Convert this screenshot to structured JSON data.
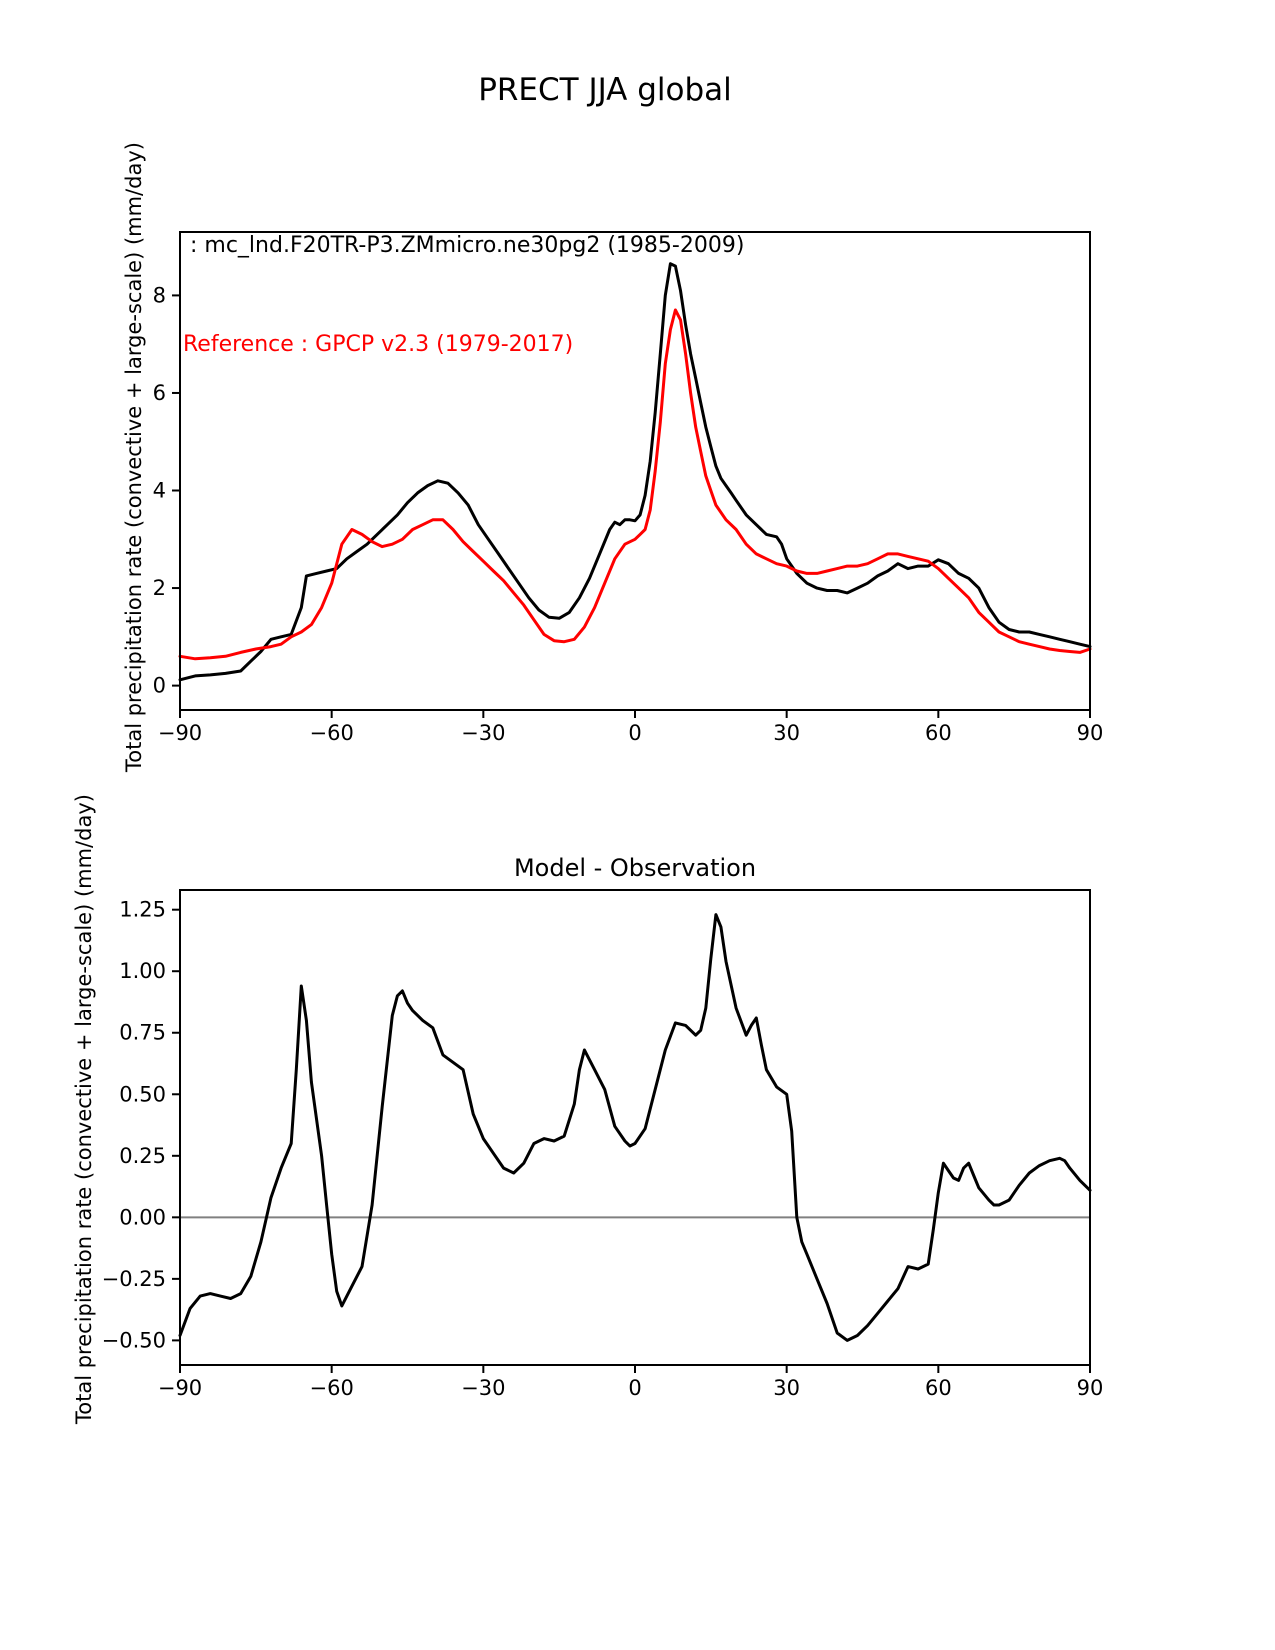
{
  "page": {
    "title": "PRECT JJA global"
  },
  "legend": {
    "model_label": " : mc_lnd.F20TR-P3.ZMmicro.ne30pg2 (1985-2009)",
    "reference_label": "Reference : GPCP v2.3 (1979-2017)",
    "model_color": "#000000",
    "reference_color": "#ff0000"
  },
  "chart_data": [
    {
      "type": "line",
      "title": "",
      "xlabel": "",
      "ylabel": "Total precipitation rate (convective + large-scale) (mm/day)",
      "xlim": [
        -90,
        90
      ],
      "ylim": [
        -0.5,
        9.3
      ],
      "xticks": [
        -90,
        -60,
        -30,
        0,
        30,
        60,
        90
      ],
      "xtick_labels": [
        "−90",
        "−60",
        "−30",
        "0",
        "30",
        "60",
        "90"
      ],
      "yticks": [
        0,
        2,
        4,
        6,
        8
      ],
      "ytick_labels": [
        "0",
        "2",
        "4",
        "6",
        "8"
      ],
      "grid": false,
      "zero_line": false,
      "series": [
        {
          "name": "mc_lnd.F20TR-P3.ZMmicro.ne30pg2 (1985-2009)",
          "color": "#000000",
          "x": [
            -90,
            -87,
            -84,
            -81,
            -78,
            -76,
            -74,
            -72,
            -70,
            -68,
            -66,
            -65,
            -63,
            -61,
            -59,
            -57,
            -55,
            -53,
            -51,
            -49,
            -47,
            -45,
            -43,
            -41,
            -39,
            -37,
            -35,
            -33,
            -31,
            -29,
            -27,
            -25,
            -23,
            -21,
            -19,
            -17,
            -15,
            -13,
            -11,
            -9,
            -7,
            -5,
            -4,
            -3,
            -2,
            -1,
            0,
            1,
            2,
            3,
            4,
            5,
            6,
            7,
            8,
            9,
            10,
            11,
            12,
            13,
            14,
            15,
            16,
            17,
            18,
            19,
            20,
            22,
            24,
            26,
            28,
            29,
            30,
            32,
            34,
            36,
            38,
            40,
            42,
            44,
            46,
            48,
            50,
            52,
            54,
            56,
            58,
            60,
            62,
            64,
            66,
            68,
            70,
            72,
            74,
            76,
            78,
            80,
            82,
            84,
            86,
            88,
            90
          ],
          "y": [
            0.12,
            0.2,
            0.22,
            0.25,
            0.3,
            0.5,
            0.7,
            0.95,
            1.0,
            1.05,
            1.6,
            2.25,
            2.3,
            2.35,
            2.4,
            2.6,
            2.75,
            2.9,
            3.1,
            3.3,
            3.5,
            3.75,
            3.95,
            4.1,
            4.2,
            4.15,
            3.95,
            3.7,
            3.3,
            3.0,
            2.7,
            2.4,
            2.1,
            1.8,
            1.55,
            1.4,
            1.38,
            1.5,
            1.8,
            2.2,
            2.7,
            3.2,
            3.35,
            3.3,
            3.4,
            3.4,
            3.38,
            3.5,
            3.9,
            4.6,
            5.6,
            6.8,
            8.0,
            8.65,
            8.6,
            8.1,
            7.4,
            6.8,
            6.3,
            5.8,
            5.3,
            4.9,
            4.5,
            4.25,
            4.1,
            3.95,
            3.8,
            3.5,
            3.3,
            3.1,
            3.05,
            2.9,
            2.6,
            2.3,
            2.1,
            2.0,
            1.95,
            1.95,
            1.9,
            2.0,
            2.1,
            2.25,
            2.35,
            2.5,
            2.4,
            2.45,
            2.45,
            2.58,
            2.5,
            2.3,
            2.2,
            2.0,
            1.6,
            1.3,
            1.15,
            1.1,
            1.1,
            1.05,
            1.0,
            0.95,
            0.9,
            0.85,
            0.8
          ]
        },
        {
          "name": "GPCP v2.3 (1979-2017)",
          "color": "#ff0000",
          "x": [
            -90,
            -87,
            -84,
            -81,
            -78,
            -75,
            -72,
            -70,
            -68,
            -66,
            -64,
            -62,
            -60,
            -58,
            -56,
            -54,
            -52,
            -50,
            -48,
            -46,
            -44,
            -42,
            -40,
            -38,
            -36,
            -34,
            -32,
            -30,
            -28,
            -26,
            -24,
            -22,
            -20,
            -18,
            -16,
            -14,
            -12,
            -10,
            -8,
            -6,
            -4,
            -2,
            0,
            1,
            2,
            3,
            4,
            5,
            6,
            7,
            8,
            9,
            10,
            11,
            12,
            13,
            14,
            15,
            16,
            18,
            20,
            22,
            24,
            26,
            28,
            30,
            32,
            34,
            36,
            38,
            40,
            42,
            44,
            46,
            48,
            50,
            52,
            54,
            56,
            58,
            60,
            62,
            64,
            66,
            68,
            70,
            72,
            74,
            76,
            78,
            80,
            82,
            84,
            86,
            88,
            90
          ],
          "y": [
            0.6,
            0.55,
            0.57,
            0.6,
            0.68,
            0.75,
            0.8,
            0.85,
            1.0,
            1.1,
            1.25,
            1.6,
            2.1,
            2.9,
            3.2,
            3.1,
            2.95,
            2.85,
            2.9,
            3.0,
            3.2,
            3.3,
            3.4,
            3.4,
            3.2,
            2.95,
            2.75,
            2.55,
            2.35,
            2.15,
            1.9,
            1.65,
            1.35,
            1.05,
            0.92,
            0.9,
            0.95,
            1.2,
            1.6,
            2.1,
            2.6,
            2.9,
            3.0,
            3.1,
            3.2,
            3.6,
            4.4,
            5.4,
            6.6,
            7.3,
            7.7,
            7.5,
            6.8,
            6.0,
            5.3,
            4.8,
            4.3,
            4.0,
            3.7,
            3.4,
            3.2,
            2.9,
            2.7,
            2.6,
            2.5,
            2.45,
            2.35,
            2.3,
            2.3,
            2.35,
            2.4,
            2.45,
            2.45,
            2.5,
            2.6,
            2.7,
            2.7,
            2.65,
            2.6,
            2.55,
            2.4,
            2.2,
            2.0,
            1.8,
            1.5,
            1.3,
            1.1,
            1.0,
            0.9,
            0.85,
            0.8,
            0.75,
            0.72,
            0.7,
            0.68,
            0.75
          ]
        }
      ]
    },
    {
      "type": "line",
      "title": "Model - Observation",
      "xlabel": "",
      "ylabel": "Total precipitation rate (convective + large-scale) (mm/day)",
      "xlim": [
        -90,
        90
      ],
      "ylim": [
        -0.6,
        1.33
      ],
      "xticks": [
        -90,
        -60,
        -30,
        0,
        30,
        60,
        90
      ],
      "xtick_labels": [
        "−90",
        "−60",
        "−30",
        "0",
        "30",
        "60",
        "90"
      ],
      "yticks": [
        -0.5,
        -0.25,
        0.0,
        0.25,
        0.5,
        0.75,
        1.0,
        1.25
      ],
      "ytick_labels": [
        "−0.50",
        "−0.25",
        "0.00",
        "0.25",
        "0.50",
        "0.75",
        "1.00",
        "1.25"
      ],
      "grid": false,
      "zero_line": true,
      "zero_line_color": "#808080",
      "series": [
        {
          "name": "Model - Observation",
          "color": "#000000",
          "x": [
            -90,
            -88,
            -86,
            -84,
            -82,
            -80,
            -78,
            -76,
            -74,
            -72,
            -70,
            -68,
            -67,
            -66,
            -65,
            -64,
            -62,
            -61,
            -60,
            -59,
            -58,
            -56,
            -54,
            -52,
            -50,
            -48,
            -47,
            -46,
            -45,
            -44,
            -42,
            -40,
            -38,
            -36,
            -34,
            -32,
            -30,
            -28,
            -26,
            -24,
            -22,
            -20,
            -18,
            -16,
            -14,
            -12,
            -11,
            -10,
            -9,
            -8,
            -6,
            -4,
            -2,
            -1,
            0,
            2,
            4,
            6,
            8,
            10,
            12,
            13,
            14,
            15,
            16,
            17,
            18,
            20,
            22,
            23,
            24,
            25,
            26,
            28,
            30,
            31,
            32,
            33,
            34,
            36,
            38,
            40,
            42,
            44,
            46,
            48,
            50,
            52,
            54,
            56,
            58,
            59,
            60,
            61,
            62,
            63,
            64,
            65,
            66,
            67,
            68,
            70,
            71,
            72,
            74,
            76,
            78,
            80,
            82,
            84,
            85,
            86,
            88,
            90
          ],
          "y": [
            -0.48,
            -0.37,
            -0.32,
            -0.31,
            -0.32,
            -0.33,
            -0.31,
            -0.24,
            -0.1,
            0.08,
            0.2,
            0.3,
            0.6,
            0.94,
            0.8,
            0.55,
            0.25,
            0.05,
            -0.15,
            -0.3,
            -0.36,
            -0.28,
            -0.2,
            0.05,
            0.45,
            0.82,
            0.9,
            0.92,
            0.87,
            0.84,
            0.8,
            0.77,
            0.66,
            0.63,
            0.6,
            0.42,
            0.32,
            0.26,
            0.2,
            0.18,
            0.22,
            0.3,
            0.32,
            0.31,
            0.33,
            0.46,
            0.6,
            0.68,
            0.64,
            0.6,
            0.52,
            0.37,
            0.31,
            0.29,
            0.3,
            0.36,
            0.52,
            0.68,
            0.79,
            0.78,
            0.74,
            0.76,
            0.85,
            1.05,
            1.23,
            1.18,
            1.04,
            0.85,
            0.74,
            0.78,
            0.81,
            0.7,
            0.6,
            0.53,
            0.5,
            0.35,
            0.0,
            -0.1,
            -0.15,
            -0.25,
            -0.35,
            -0.47,
            -0.5,
            -0.48,
            -0.44,
            -0.39,
            -0.34,
            -0.29,
            -0.2,
            -0.21,
            -0.19,
            -0.05,
            0.1,
            0.22,
            0.19,
            0.16,
            0.15,
            0.2,
            0.22,
            0.17,
            0.12,
            0.07,
            0.05,
            0.05,
            0.07,
            0.13,
            0.18,
            0.21,
            0.23,
            0.24,
            0.23,
            0.2,
            0.15,
            0.11
          ]
        }
      ]
    }
  ]
}
